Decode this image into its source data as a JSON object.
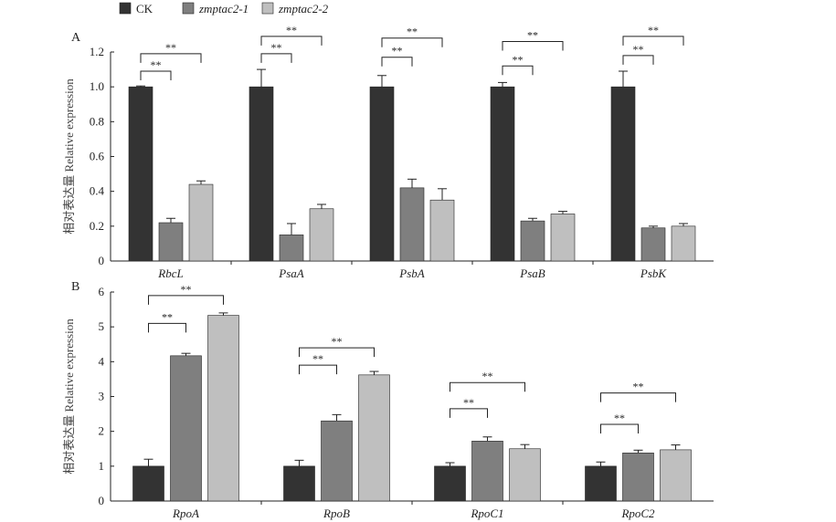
{
  "legend": [
    {
      "label": "CK",
      "color": "#333333",
      "italic": false
    },
    {
      "label": "zmptac2-1",
      "color": "#7f7f7f",
      "italic": true
    },
    {
      "label": "zmptac2-2",
      "color": "#bfbfbf",
      "italic": true
    }
  ],
  "chart_data": [
    {
      "type": "bar",
      "panel": "A",
      "ylabel": "相对表达量 Relative expression",
      "ylim": [
        0,
        1.2
      ],
      "yticks": [
        0,
        0.2,
        0.4,
        0.6,
        0.8,
        1.0,
        1.2
      ],
      "ytick_labels": [
        "0",
        "0.2",
        "0.4",
        "0.6",
        "0.8",
        "1.0",
        "1.2"
      ],
      "categories": [
        "RbcL",
        "PsaA",
        "PsbA",
        "PsaB",
        "PsbK"
      ],
      "series": [
        {
          "name": "CK",
          "values": [
            1.0,
            1.0,
            1.0,
            1.0,
            1.0
          ],
          "errors": [
            0.005,
            0.1,
            0.065,
            0.025,
            0.09
          ]
        },
        {
          "name": "zmptac2-1",
          "values": [
            0.22,
            0.15,
            0.42,
            0.23,
            0.19
          ],
          "errors": [
            0.025,
            0.065,
            0.05,
            0.015,
            0.01
          ]
        },
        {
          "name": "zmptac2-2",
          "values": [
            0.44,
            0.3,
            0.35,
            0.27,
            0.2
          ],
          "errors": [
            0.02,
            0.025,
            0.065,
            0.015,
            0.015
          ]
        }
      ],
      "significance": [
        {
          "category": 0,
          "from": 0,
          "to": 1,
          "label": "**",
          "y": 1.09
        },
        {
          "category": 0,
          "from": 0,
          "to": 2,
          "label": "**",
          "y": 1.19
        },
        {
          "category": 1,
          "from": 0,
          "to": 1,
          "label": "**",
          "y": 1.19
        },
        {
          "category": 1,
          "from": 0,
          "to": 2,
          "label": "**",
          "y": 1.29
        },
        {
          "category": 2,
          "from": 0,
          "to": 1,
          "label": "**",
          "y": 1.17
        },
        {
          "category": 2,
          "from": 0,
          "to": 2,
          "label": "**",
          "y": 1.28
        },
        {
          "category": 3,
          "from": 0,
          "to": 1,
          "label": "**",
          "y": 1.12
        },
        {
          "category": 3,
          "from": 0,
          "to": 2,
          "label": "**",
          "y": 1.26
        },
        {
          "category": 4,
          "from": 0,
          "to": 1,
          "label": "**",
          "y": 1.18
        },
        {
          "category": 4,
          "from": 0,
          "to": 2,
          "label": "**",
          "y": 1.29
        }
      ]
    },
    {
      "type": "bar",
      "panel": "B",
      "ylabel": "相对表达量 Relative expression",
      "ylim": [
        0,
        6
      ],
      "yticks": [
        0,
        1,
        2,
        3,
        4,
        5,
        6
      ],
      "ytick_labels": [
        "0",
        "1",
        "2",
        "3",
        "4",
        "5",
        "6"
      ],
      "categories": [
        "RpoA",
        "RpoB",
        "RpoC1",
        "RpoC2"
      ],
      "series": [
        {
          "name": "CK",
          "values": [
            1.0,
            1.0,
            1.0,
            1.0
          ],
          "errors": [
            0.2,
            0.17,
            0.1,
            0.12
          ]
        },
        {
          "name": "zmptac2-1",
          "values": [
            4.17,
            2.3,
            1.72,
            1.38
          ],
          "errors": [
            0.07,
            0.18,
            0.12,
            0.08
          ]
        },
        {
          "name": "zmptac2-2",
          "values": [
            5.33,
            3.62,
            1.5,
            1.47
          ],
          "errors": [
            0.07,
            0.1,
            0.12,
            0.14
          ]
        }
      ],
      "significance": [
        {
          "category": 0,
          "from": 0,
          "to": 1,
          "label": "**",
          "y": 5.1
        },
        {
          "category": 0,
          "from": 0,
          "to": 2,
          "label": "**",
          "y": 5.9
        },
        {
          "category": 1,
          "from": 0,
          "to": 1,
          "label": "**",
          "y": 3.9
        },
        {
          "category": 1,
          "from": 0,
          "to": 2,
          "label": "**",
          "y": 4.4
        },
        {
          "category": 2,
          "from": 0,
          "to": 1,
          "label": "**",
          "y": 2.65
        },
        {
          "category": 2,
          "from": 0,
          "to": 2,
          "label": "**",
          "y": 3.4
        },
        {
          "category": 3,
          "from": 0,
          "to": 1,
          "label": "**",
          "y": 2.2
        },
        {
          "category": 3,
          "from": 0,
          "to": 2,
          "label": "**",
          "y": 3.1
        }
      ]
    }
  ]
}
